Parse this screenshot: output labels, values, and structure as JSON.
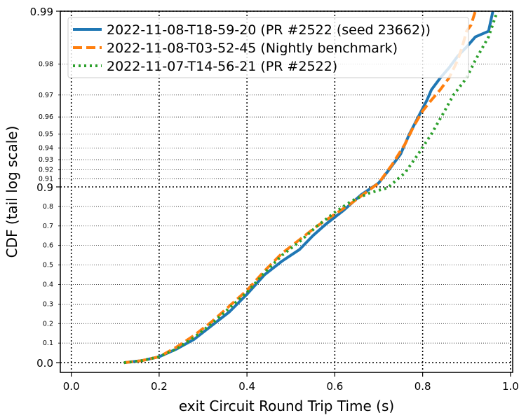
{
  "chart_data": {
    "type": "line",
    "xlabel": "exit Circuit Round Trip Time (s)",
    "ylabel": "CDF (tail log scale)",
    "xlim": [
      -0.025,
      1.005
    ],
    "x_ticks": [
      0.0,
      0.2,
      0.4,
      0.6,
      0.8,
      1.0
    ],
    "x_tick_labels": [
      "0.0",
      "0.2",
      "0.4",
      "0.6",
      "0.8",
      "1.0"
    ],
    "y_scale": "tail-log",
    "ylim": [
      -0.05,
      0.99
    ],
    "y_major_ticks": [
      0.0,
      0.9,
      0.99
    ],
    "y_major_tick_labels": [
      "0.0",
      "0.9",
      "0.99"
    ],
    "y_minor_ticks": [
      0.1,
      0.2,
      0.3,
      0.4,
      0.5,
      0.6,
      0.7,
      0.8,
      0.91,
      0.92,
      0.93,
      0.94,
      0.95,
      0.96,
      0.97,
      0.98
    ],
    "y_minor_tick_labels": [
      "0.1",
      "0.2",
      "0.3",
      "0.4",
      "0.5",
      "0.6",
      "0.7",
      "0.8",
      "0.91",
      "0.92",
      "0.93",
      "0.94",
      "0.95",
      "0.96",
      "0.97",
      "0.98"
    ],
    "grid": true,
    "legend_position": "top-left",
    "series": [
      {
        "name": "2022-11-08-T18-59-20 (PR #2522 (seed 23662))",
        "color": "#1f77b4",
        "style": "solid",
        "x": [
          0.12,
          0.16,
          0.2,
          0.24,
          0.28,
          0.32,
          0.36,
          0.4,
          0.44,
          0.48,
          0.52,
          0.55,
          0.58,
          0.62,
          0.66,
          0.7,
          0.72,
          0.75,
          0.77,
          0.79,
          0.81,
          0.82,
          0.84,
          0.86,
          0.88,
          0.9,
          0.92,
          0.95,
          0.96
        ],
        "y": [
          0.0,
          0.01,
          0.03,
          0.07,
          0.12,
          0.19,
          0.26,
          0.35,
          0.45,
          0.52,
          0.58,
          0.65,
          0.71,
          0.78,
          0.86,
          0.905,
          0.918,
          0.935,
          0.95,
          0.96,
          0.968,
          0.972,
          0.976,
          0.979,
          0.982,
          0.984,
          0.986,
          0.987,
          0.99
        ]
      },
      {
        "name": "2022-11-08-T03-52-45 (Nightly benchmark)",
        "color": "#ff7f0e",
        "style": "dashed",
        "x": [
          0.12,
          0.16,
          0.2,
          0.24,
          0.28,
          0.32,
          0.36,
          0.4,
          0.44,
          0.48,
          0.52,
          0.56,
          0.6,
          0.64,
          0.67,
          0.7,
          0.73,
          0.76,
          0.78,
          0.8,
          0.82,
          0.84,
          0.86,
          0.88,
          0.89,
          0.9,
          0.91,
          0.92
        ],
        "y": [
          0.0,
          0.01,
          0.03,
          0.08,
          0.14,
          0.21,
          0.29,
          0.37,
          0.47,
          0.56,
          0.63,
          0.7,
          0.76,
          0.82,
          0.87,
          0.905,
          0.925,
          0.943,
          0.955,
          0.963,
          0.968,
          0.972,
          0.976,
          0.981,
          0.984,
          0.987,
          0.988,
          0.99
        ]
      },
      {
        "name": "2022-11-07-T14-56-21 (PR #2522)",
        "color": "#2ca02c",
        "style": "dotted",
        "x": [
          0.12,
          0.16,
          0.2,
          0.24,
          0.28,
          0.32,
          0.36,
          0.4,
          0.44,
          0.48,
          0.52,
          0.56,
          0.6,
          0.64,
          0.68,
          0.72,
          0.76,
          0.79,
          0.82,
          0.85,
          0.87,
          0.9,
          0.92,
          0.95,
          0.97
        ],
        "y": [
          0.0,
          0.01,
          0.03,
          0.07,
          0.13,
          0.2,
          0.28,
          0.36,
          0.46,
          0.55,
          0.62,
          0.7,
          0.77,
          0.83,
          0.87,
          0.895,
          0.917,
          0.935,
          0.95,
          0.963,
          0.97,
          0.976,
          0.981,
          0.986,
          0.99
        ]
      }
    ]
  }
}
